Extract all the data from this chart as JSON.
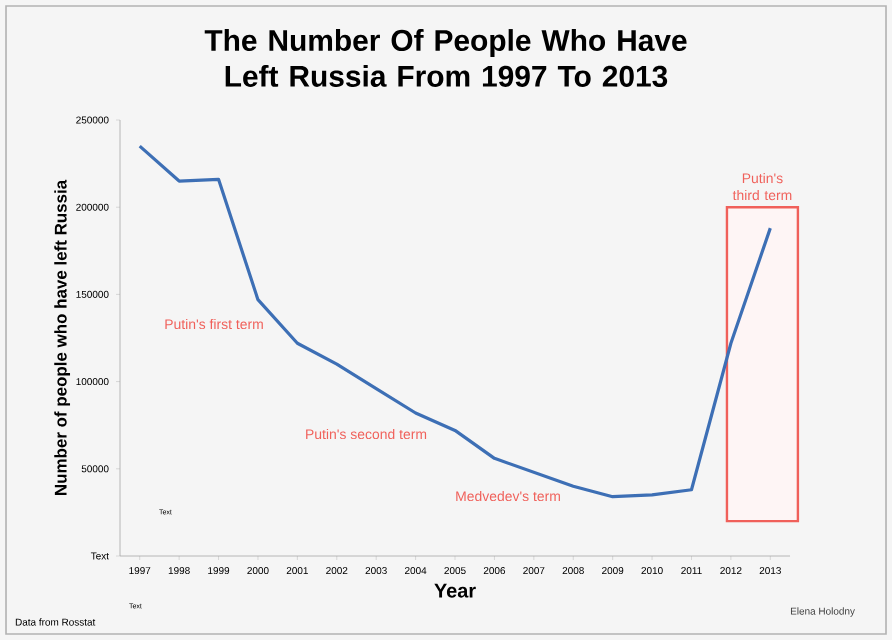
{
  "chart_data": {
    "type": "line",
    "title": "The Number Of People Who Have Left Russia From 1997 To 2013",
    "xlabel": "Year",
    "ylabel": "Number of people who have left Russia",
    "x": [
      1997,
      1998,
      1999,
      2000,
      2001,
      2002,
      2003,
      2004,
      2005,
      2006,
      2007,
      2008,
      2009,
      2010,
      2011,
      2012,
      2013
    ],
    "series": [
      {
        "color": "#3d6fb5",
        "values": [
          235000,
          215000,
          216000,
          147000,
          122000,
          110000,
          96000,
          82000,
          72000,
          56000,
          48000,
          40000,
          34000,
          35000,
          38000,
          122000,
          188000
        ]
      }
    ],
    "xlim": [
      1996.5,
      2013.5
    ],
    "ylim": [
      0,
      250000
    ],
    "xticks": [
      1997,
      1998,
      1999,
      2000,
      2001,
      2002,
      2003,
      2004,
      2005,
      2006,
      2007,
      2008,
      2009,
      2010,
      2011,
      2012,
      2013
    ],
    "yticks": [
      {
        "value": 0,
        "label": "Text"
      },
      50000,
      100000,
      150000,
      200000,
      250000
    ],
    "bands": [
      {
        "axis": "x",
        "from": 2011.9,
        "to": 2013.7,
        "label": "Putin's third term",
        "color": "#f0605a"
      }
    ],
    "annotations": [
      "Putin's first term",
      "Putin's second term",
      "Medvedev's term",
      "Text",
      "Text",
      "Data from Rosstat",
      "Elena Holodny"
    ],
    "grid": false,
    "marker": "none",
    "line_style": "solid"
  }
}
